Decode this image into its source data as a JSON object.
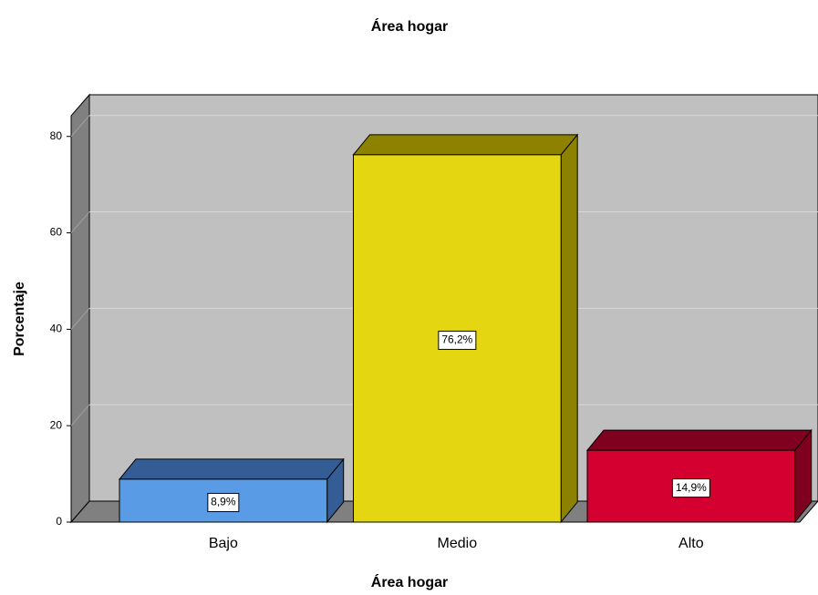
{
  "chart_data": {
    "type": "bar",
    "title": "Área hogar",
    "x_label": "Área hogar",
    "y_label": "Porcentaje",
    "categories": [
      "Bajo",
      "Medio",
      "Alto"
    ],
    "values": [
      8.9,
      76.2,
      14.9
    ],
    "value_labels": [
      "8,9%",
      "76,2%",
      "14,9%"
    ],
    "colors": [
      "#5a9be6",
      "#e4d711",
      "#d4002f"
    ],
    "depth_colors": [
      "#345d95",
      "#8c8200",
      "#800020"
    ],
    "ylim": [
      0,
      84.3
    ],
    "yticks": [
      0,
      20,
      40,
      60,
      80
    ],
    "grid": true
  }
}
